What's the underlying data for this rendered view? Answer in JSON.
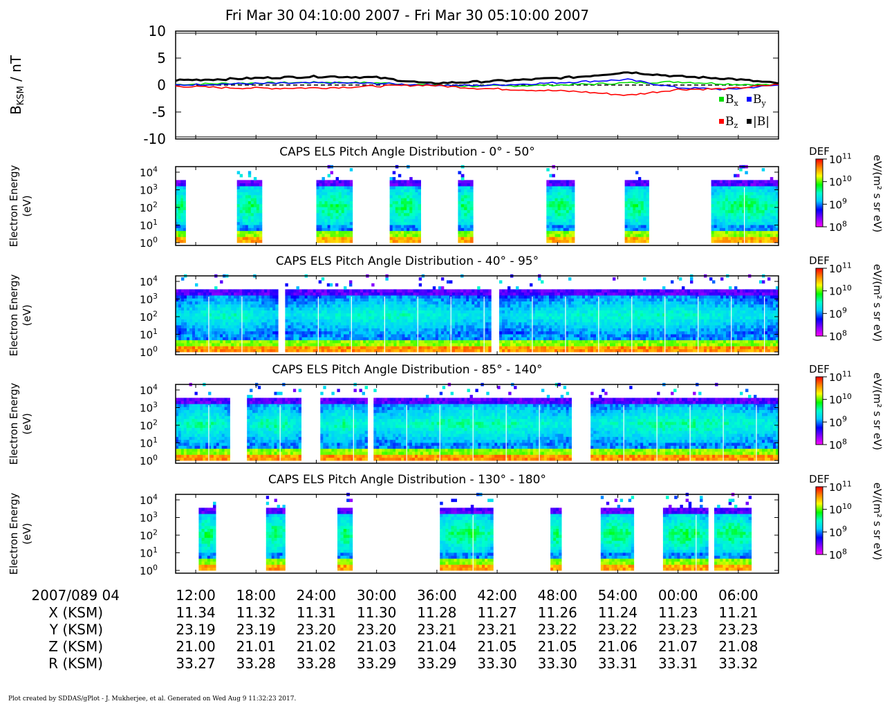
{
  "title": "Fri Mar 30 04:10:00 2007 - Fri Mar 30 05:10:00 2007",
  "footer": "Plot created by SDDAS/gPlot - J. Mukherjee, et al.  Generated on Wed Aug 9 11:32:23 2017.",
  "colors": {
    "bx": "#00dd00",
    "by": "#0000ff",
    "bz": "#ff0000",
    "b_total": "#000000",
    "zero_line": "#000000"
  },
  "chart_data": [
    {
      "type": "line",
      "ylabel_main": "B",
      "ylabel_sub": "KSM",
      "ylabel_rest": " / nT",
      "ylim": [
        -10,
        10
      ],
      "yticks": [
        10,
        5,
        0,
        -5,
        -10
      ],
      "x_minutes": [
        0,
        5,
        10,
        15,
        20,
        25,
        30,
        35,
        40,
        45,
        50,
        55,
        60
      ],
      "series": [
        {
          "name": "B",
          "sub": "x",
          "color": "#00dd00",
          "values": [
            0.1,
            0.3,
            0.4,
            0.5,
            0.4,
            0.0,
            -0.2,
            -0.1,
            0.1,
            0.4,
            0.6,
            0.2,
            0.0
          ]
        },
        {
          "name": "B",
          "sub": "y",
          "color": "#0000ff",
          "values": [
            0.0,
            0.2,
            0.3,
            0.4,
            0.3,
            0.0,
            -0.1,
            0.2,
            0.6,
            1.0,
            -0.5,
            -0.8,
            0.0
          ]
        },
        {
          "name": "B",
          "sub": "z",
          "color": "#ff0000",
          "values": [
            -0.2,
            -0.5,
            -0.6,
            -0.5,
            -0.2,
            0.0,
            -0.6,
            -0.9,
            -1.2,
            -1.9,
            -0.8,
            -0.7,
            0.1
          ]
        },
        {
          "name": "|B|",
          "sub": "",
          "color": "#000000",
          "values": [
            0.9,
            1.1,
            1.4,
            1.6,
            1.4,
            0.3,
            0.6,
            1.0,
            1.5,
            2.4,
            1.6,
            1.2,
            0.3
          ]
        }
      ]
    },
    {
      "type": "heatmap",
      "title": "CAPS ELS Pitch Angle Distribution - 0° - 50°",
      "ylabel": [
        "Electron Energy",
        "(eV)"
      ],
      "cbar_label": "DEF",
      "cbar_units": "eV/(m² s sr eV)",
      "cbar_range_log10": [
        8,
        11
      ],
      "data_intervals_min": [
        [
          0.0,
          1.0
        ],
        [
          6.1,
          8.6
        ],
        [
          14.0,
          17.6
        ],
        [
          21.3,
          24.4
        ],
        [
          28.1,
          29.6
        ],
        [
          36.9,
          39.7
        ],
        [
          44.7,
          47.1
        ],
        [
          53.3,
          60.0
        ]
      ]
    },
    {
      "type": "heatmap",
      "title": "CAPS ELS Pitch Angle Distribution - 40° - 95°",
      "ylabel": [
        "Electron Energy",
        "(eV)"
      ],
      "cbar_label": "DEF",
      "cbar_units": "eV/(m² s sr eV)",
      "cbar_range_log10": [
        8,
        11
      ],
      "data_intervals_min": [
        [
          0.0,
          10.2
        ],
        [
          10.9,
          31.4
        ],
        [
          32.2,
          60.0
        ]
      ]
    },
    {
      "type": "heatmap",
      "title": "CAPS ELS Pitch Angle Distribution - 85° - 140°",
      "ylabel": [
        "Electron Energy",
        "(eV)"
      ],
      "cbar_label": "DEF",
      "cbar_units": "eV/(m² s sr eV)",
      "cbar_range_log10": [
        8,
        11
      ],
      "data_intervals_min": [
        [
          0.0,
          5.4
        ],
        [
          7.1,
          12.5
        ],
        [
          14.4,
          19.1
        ],
        [
          19.7,
          39.4
        ],
        [
          41.3,
          60.0
        ]
      ]
    },
    {
      "type": "heatmap",
      "title": "CAPS ELS Pitch Angle Distribution - 130° - 180°",
      "ylabel": [
        "Electron Energy",
        "(eV)"
      ],
      "cbar_label": "DEF",
      "cbar_units": "eV/(m² s sr eV)",
      "cbar_range_log10": [
        8,
        11
      ],
      "data_intervals_min": [
        [
          2.3,
          4.0
        ],
        [
          9.0,
          10.9
        ],
        [
          16.1,
          17.6
        ],
        [
          26.3,
          31.6
        ],
        [
          37.3,
          38.4
        ],
        [
          42.3,
          45.6
        ],
        [
          48.5,
          53.0
        ],
        [
          53.6,
          57.3
        ]
      ]
    }
  ],
  "energy_axis": {
    "ticks": [
      {
        "base": "10",
        "exp": "4"
      },
      {
        "base": "10",
        "exp": "3"
      },
      {
        "base": "10",
        "exp": "2"
      },
      {
        "base": "10",
        "exp": "1"
      },
      {
        "base": "10",
        "exp": "0"
      }
    ]
  },
  "colorbar_ticks": [
    {
      "base": "10",
      "exp": "11"
    },
    {
      "base": "10",
      "exp": "10"
    },
    {
      "base": "10",
      "exp": "9"
    },
    {
      "base": "10",
      "exp": "8"
    }
  ],
  "time_axis": {
    "start_label": "2007/089 04",
    "ticks": [
      "12:00",
      "18:00",
      "24:00",
      "30:00",
      "36:00",
      "42:00",
      "48:00",
      "54:00",
      "00:00",
      "06:00"
    ],
    "tick_minutes": [
      2,
      8,
      14,
      20,
      26,
      32,
      38,
      44,
      50,
      56
    ],
    "span_minutes": [
      0,
      60
    ],
    "ephemeris": [
      {
        "label": "X (KSM)",
        "values": [
          "11.34",
          "11.32",
          "11.31",
          "11.30",
          "11.28",
          "11.27",
          "11.26",
          "11.24",
          "11.23",
          "11.21"
        ]
      },
      {
        "label": "Y (KSM)",
        "values": [
          "23.19",
          "23.19",
          "23.20",
          "23.20",
          "23.21",
          "23.21",
          "23.22",
          "23.22",
          "23.23",
          "23.23"
        ]
      },
      {
        "label": "Z (KSM)",
        "values": [
          "21.00",
          "21.01",
          "21.02",
          "21.03",
          "21.04",
          "21.05",
          "21.05",
          "21.06",
          "21.07",
          "21.08"
        ]
      },
      {
        "label": "R (KSM)",
        "values": [
          "33.27",
          "33.28",
          "33.28",
          "33.29",
          "33.29",
          "33.30",
          "33.30",
          "33.31",
          "33.31",
          "33.32"
        ]
      }
    ]
  }
}
